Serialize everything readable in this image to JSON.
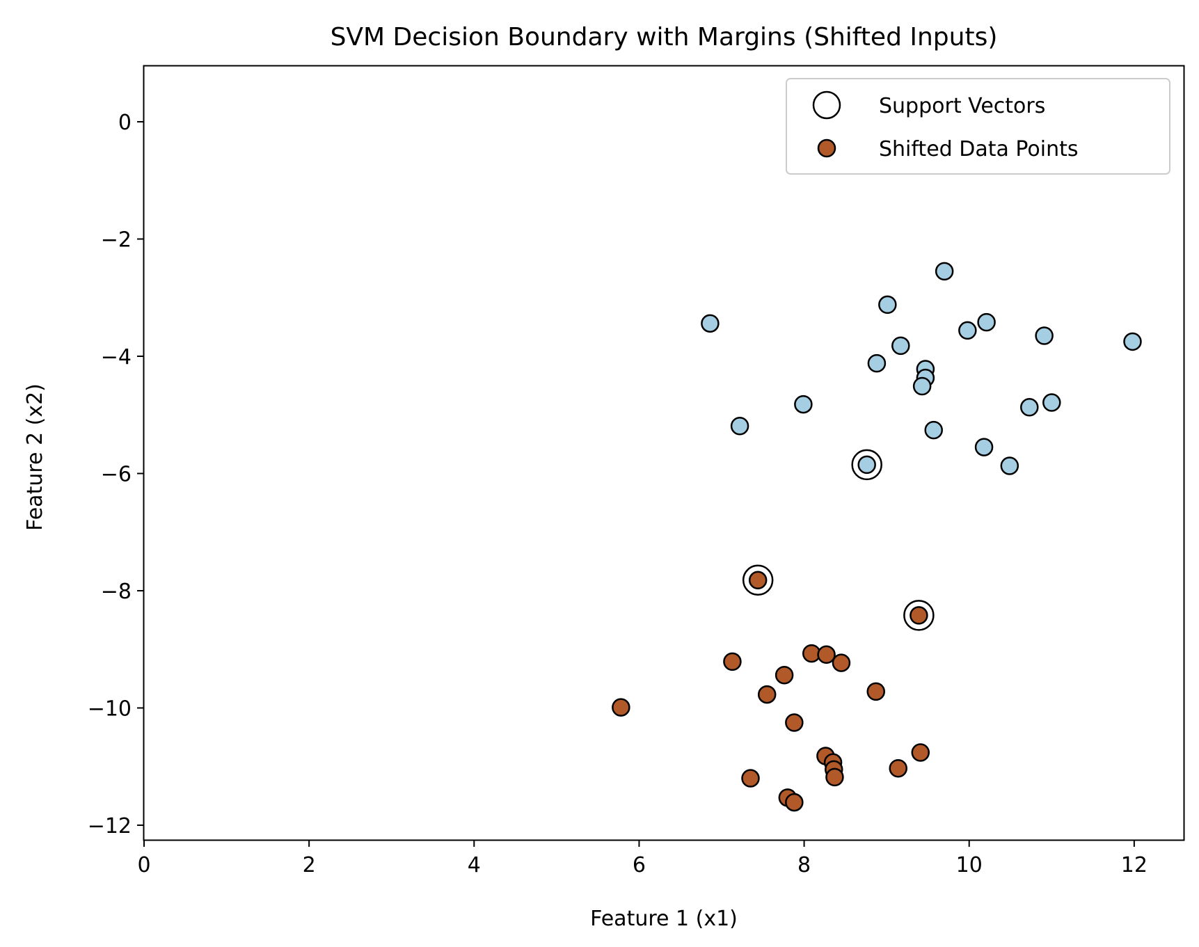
{
  "chart_data": {
    "type": "scatter",
    "title": "SVM Decision Boundary with Margins (Shifted Inputs)",
    "xlabel": "Feature 1 (x1)",
    "ylabel": "Feature 2 (x2)",
    "xlim": [
      0,
      12.6
    ],
    "ylim": [
      -12.25,
      0.95
    ],
    "xticks": [
      0,
      2,
      4,
      6,
      8,
      10,
      12
    ],
    "yticks": [
      0,
      -2,
      -4,
      -6,
      -8,
      -10,
      -12
    ],
    "grid": false,
    "legend_placement": "top-right",
    "legend": [
      {
        "label": "Support Vectors",
        "marker": "open-circle"
      },
      {
        "label": "Shifted Data Points",
        "marker": "filled-circle",
        "color": "#b15928"
      }
    ],
    "colors": {
      "class_light": "#a6cee3",
      "class_dark": "#b15928",
      "edge": "#000000"
    },
    "series": [
      {
        "color": "#a6cee3",
        "points": [
          [
            9.7,
            -2.55
          ],
          [
            9.01,
            -3.12
          ],
          [
            6.86,
            -3.44
          ],
          [
            10.21,
            -3.42
          ],
          [
            9.98,
            -3.56
          ],
          [
            10.91,
            -3.65
          ],
          [
            11.98,
            -3.75
          ],
          [
            9.17,
            -3.82
          ],
          [
            8.88,
            -4.12
          ],
          [
            9.47,
            -4.22
          ],
          [
            9.47,
            -4.37
          ],
          [
            9.43,
            -4.51
          ],
          [
            7.99,
            -4.82
          ],
          [
            11.0,
            -4.79
          ],
          [
            10.73,
            -4.87
          ],
          [
            7.22,
            -5.19
          ],
          [
            9.57,
            -5.26
          ],
          [
            10.18,
            -5.55
          ],
          [
            10.49,
            -5.87
          ],
          [
            8.76,
            -5.85
          ]
        ]
      },
      {
        "color": "#b15928",
        "points": [
          [
            7.44,
            -7.82
          ],
          [
            9.39,
            -8.42
          ],
          [
            8.09,
            -9.07
          ],
          [
            8.27,
            -9.09
          ],
          [
            7.13,
            -9.21
          ],
          [
            8.45,
            -9.23
          ],
          [
            7.76,
            -9.44
          ],
          [
            8.87,
            -9.72
          ],
          [
            7.55,
            -9.77
          ],
          [
            5.78,
            -9.99
          ],
          [
            7.88,
            -10.25
          ],
          [
            9.41,
            -10.76
          ],
          [
            8.26,
            -10.82
          ],
          [
            8.35,
            -10.93
          ],
          [
            8.36,
            -11.05
          ],
          [
            9.14,
            -11.03
          ],
          [
            7.35,
            -11.2
          ],
          [
            8.37,
            -11.18
          ],
          [
            7.8,
            -11.53
          ],
          [
            7.88,
            -11.61
          ]
        ]
      }
    ],
    "support_vectors": [
      [
        8.76,
        -5.85
      ],
      [
        7.44,
        -7.82
      ],
      [
        9.39,
        -8.42
      ]
    ]
  }
}
